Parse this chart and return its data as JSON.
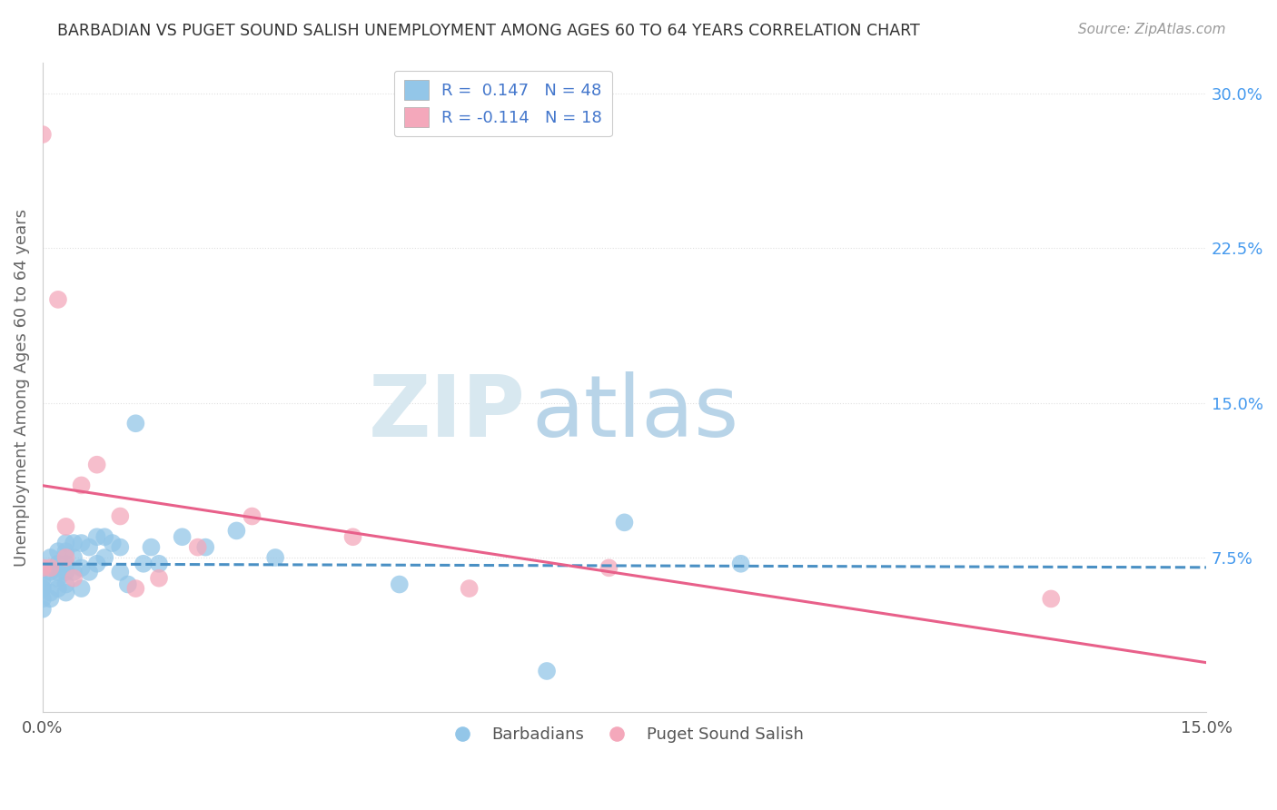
{
  "title": "BARBADIAN VS PUGET SOUND SALISH UNEMPLOYMENT AMONG AGES 60 TO 64 YEARS CORRELATION CHART",
  "source": "Source: ZipAtlas.com",
  "ylabel": "Unemployment Among Ages 60 to 64 years",
  "xlim": [
    0.0,
    0.15
  ],
  "ylim": [
    0.0,
    0.315
  ],
  "xticks": [
    0.0,
    0.15
  ],
  "xticklabels": [
    "0.0%",
    "15.0%"
  ],
  "yticks_right": [
    0.075,
    0.15,
    0.225,
    0.3
  ],
  "yticklabels_right": [
    "7.5%",
    "15.0%",
    "22.5%",
    "30.0%"
  ],
  "legend_R1": "R =  0.147",
  "legend_N1": "N = 48",
  "legend_R2": "R = -0.114",
  "legend_N2": "N = 18",
  "blue_color": "#93c6e8",
  "pink_color": "#f4a8bb",
  "blue_line_color": "#4a90c4",
  "pink_line_color": "#e8608a",
  "legend_text_color": "#4477cc",
  "watermark_zip": "ZIP",
  "watermark_atlas": "atlas",
  "background_color": "#ffffff",
  "grid_color": "#e0e0e0",
  "barbadians_x": [
    0.0,
    0.0,
    0.0,
    0.0,
    0.0,
    0.001,
    0.001,
    0.001,
    0.001,
    0.002,
    0.002,
    0.002,
    0.002,
    0.002,
    0.003,
    0.003,
    0.003,
    0.003,
    0.003,
    0.003,
    0.004,
    0.004,
    0.004,
    0.005,
    0.005,
    0.005,
    0.006,
    0.006,
    0.007,
    0.007,
    0.008,
    0.008,
    0.009,
    0.01,
    0.01,
    0.011,
    0.012,
    0.013,
    0.014,
    0.015,
    0.018,
    0.021,
    0.025,
    0.03,
    0.046,
    0.065,
    0.075,
    0.09
  ],
  "barbadians_y": [
    0.05,
    0.055,
    0.06,
    0.062,
    0.065,
    0.055,
    0.058,
    0.068,
    0.075,
    0.06,
    0.065,
    0.068,
    0.072,
    0.078,
    0.058,
    0.062,
    0.068,
    0.072,
    0.078,
    0.082,
    0.068,
    0.075,
    0.082,
    0.06,
    0.07,
    0.082,
    0.068,
    0.08,
    0.072,
    0.085,
    0.075,
    0.085,
    0.082,
    0.068,
    0.08,
    0.062,
    0.14,
    0.072,
    0.08,
    0.072,
    0.085,
    0.08,
    0.088,
    0.075,
    0.062,
    0.02,
    0.092,
    0.072
  ],
  "salish_x": [
    0.0,
    0.0,
    0.001,
    0.002,
    0.003,
    0.003,
    0.004,
    0.005,
    0.007,
    0.01,
    0.012,
    0.015,
    0.02,
    0.027,
    0.04,
    0.055,
    0.073,
    0.13
  ],
  "salish_y": [
    0.28,
    0.07,
    0.07,
    0.2,
    0.09,
    0.075,
    0.065,
    0.11,
    0.12,
    0.095,
    0.06,
    0.065,
    0.08,
    0.095,
    0.085,
    0.06,
    0.07,
    0.055
  ]
}
